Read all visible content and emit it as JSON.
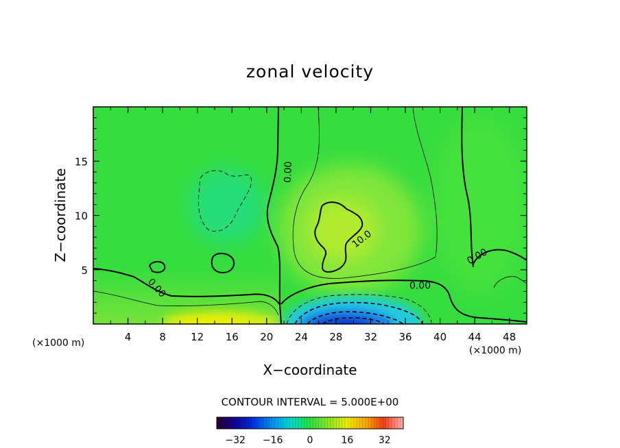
{
  "chart_data": {
    "type": "heatmap",
    "title": "zonal velocity",
    "xlabel": "X−coordinate",
    "ylabel": "Z−coordinate",
    "x_unit_left": "(×1000 m)",
    "x_unit_right": "(×1000 m)",
    "xlim": [
      0,
      50
    ],
    "ylim": [
      0,
      20
    ],
    "xticks": [
      4,
      8,
      12,
      16,
      20,
      24,
      28,
      32,
      36,
      40,
      44,
      48
    ],
    "xtick_labels": [
      "4",
      "8",
      "12",
      "16",
      "20",
      "24",
      "28",
      "32",
      "36",
      "40",
      "44",
      "48"
    ],
    "yticks": [
      5,
      10,
      15
    ],
    "ytick_labels": [
      "5",
      "10",
      "15"
    ],
    "contour_interval_text": "CONTOUR INTERVAL = 5.000E+00",
    "contour_labels": [
      {
        "text": "0.00",
        "x": 22.5,
        "y": 14.0,
        "angle": -88
      },
      {
        "text": "0.00",
        "x": 7.3,
        "y": 3.3,
        "angle": 48
      },
      {
        "text": "10.0",
        "x": 31.0,
        "y": 7.8,
        "angle": -38
      },
      {
        "text": "0.00",
        "x": 37.7,
        "y": 3.5,
        "angle": 0
      },
      {
        "text": "0.00",
        "x": 44.3,
        "y": 6.2,
        "angle": -30
      }
    ],
    "colorbar": {
      "range": [
        -40,
        40
      ],
      "ticks": [
        -32,
        -16,
        0,
        16,
        32
      ],
      "tick_labels": [
        "−32",
        "−16",
        "0",
        "16",
        "32"
      ]
    },
    "colors": {
      "background_field": "#33dd3a",
      "positive_core": "#ddee00",
      "negative_core": "#0022cc",
      "contour_line": "#000000"
    }
  }
}
